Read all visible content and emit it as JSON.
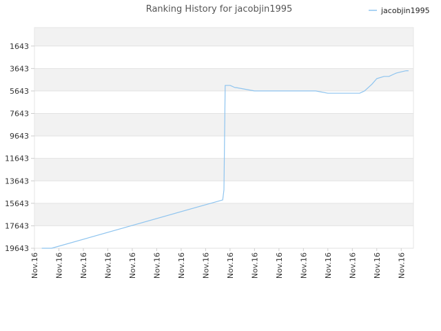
{
  "chart_data": {
    "type": "line",
    "title": "Ranking History for jacobjin1995",
    "xlabel": "",
    "ylabel": "",
    "y_inverted": true,
    "ylim": [
      19643,
      0
    ],
    "y_ticks": [
      "1643",
      "3643",
      "5643",
      "7643",
      "9643",
      "11643",
      "13643",
      "15643",
      "17643",
      "19643"
    ],
    "y_tick_values": [
      1643,
      3643,
      5643,
      7643,
      9643,
      11643,
      13643,
      15643,
      17643,
      19643
    ],
    "x_tick_labels": [
      "Nov.16",
      "Nov.16",
      "Nov.16",
      "Nov.16",
      "Nov.16",
      "Nov.16",
      "Nov.16",
      "Nov.16",
      "Nov.16",
      "Nov.16",
      "Nov.16",
      "Nov.16",
      "Nov.16",
      "Nov.16",
      "Nov.16",
      "Nov.16"
    ],
    "grid": true,
    "legend_position": "top-right",
    "series": [
      {
        "name": "jacobjin1995",
        "color": "#8ec4ef",
        "x": [
          0.3,
          0.7,
          7.7,
          7.75,
          7.8,
          8.0,
          8.2,
          8.25,
          9.0,
          10.0,
          10.2,
          11.0,
          11.5,
          12.0,
          13.0,
          13.3,
          13.5,
          13.8,
          14.0,
          14.3,
          14.5,
          14.7,
          14.8,
          15.0,
          15.2,
          15.3
        ],
        "y": [
          19643,
          19643,
          15343,
          14443,
          5143,
          5143,
          5343,
          5343,
          5643,
          5643,
          5643,
          5643,
          5643,
          5843,
          5843,
          5843,
          5643,
          5043,
          4543,
          4343,
          4343,
          4143,
          4043,
          3943,
          3843,
          3843
        ]
      }
    ]
  }
}
